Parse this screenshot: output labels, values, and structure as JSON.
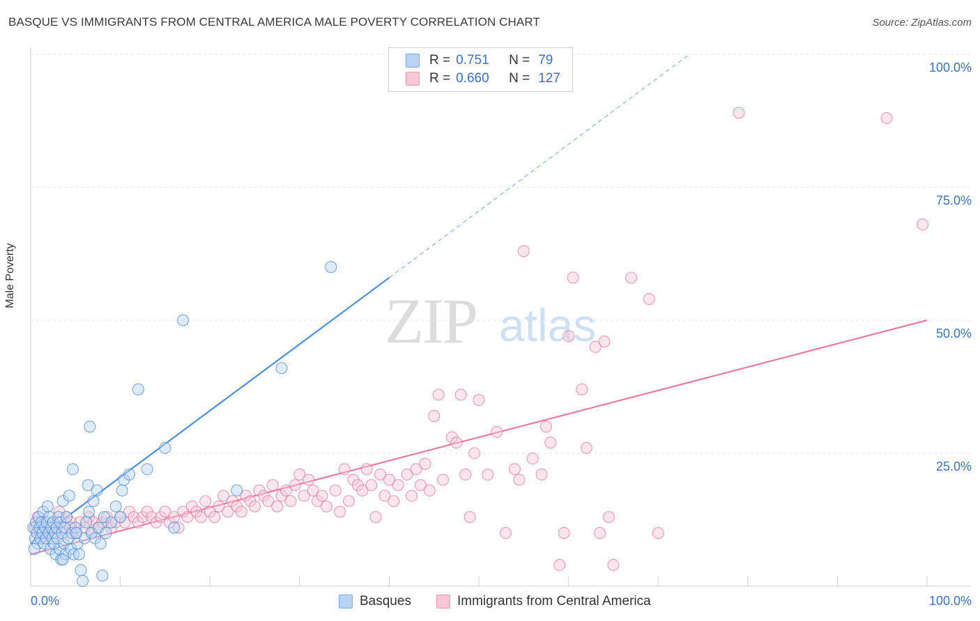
{
  "title": "BASQUE VS IMMIGRANTS FROM CENTRAL AMERICA MALE POVERTY CORRELATION CHART",
  "source": "Source: ZipAtlas.com",
  "watermark": {
    "zip": "ZIP",
    "atlas": "atlas"
  },
  "legend": {
    "r_label": "R =",
    "n_label": "N =",
    "rows": [
      {
        "r": "0.751",
        "n": "79",
        "color": "#a9c8f3"
      },
      {
        "r": "0.660",
        "n": "127",
        "color": "#f6b9cb"
      }
    ]
  },
  "bottom_legend": {
    "basques": "Basques",
    "immigrants": "Immigrants from Central America"
  },
  "y_ticks": [
    "100.0%",
    "75.0%",
    "50.0%",
    "25.0%"
  ],
  "x_ticks": {
    "left": "0.0%",
    "right": "100.0%"
  },
  "chart_data": {
    "type": "scatter",
    "title": "BASQUE VS IMMIGRANTS FROM CENTRAL AMERICA MALE POVERTY CORRELATION CHART",
    "xlabel": "",
    "ylabel": "Male Poverty",
    "xlim": [
      0,
      100
    ],
    "ylim": [
      0,
      100
    ],
    "grid": true,
    "legend_position": "top-center",
    "series": [
      {
        "name": "Basques",
        "color": "#4a8ee0",
        "fill": "#b9d3f5",
        "trend": {
          "x": [
            0,
            40
          ],
          "y": [
            8,
            58
          ],
          "dashed_to": [
            73.5,
            100
          ]
        },
        "points": [
          [
            0.3,
            11
          ],
          [
            0.5,
            9
          ],
          [
            0.6,
            12
          ],
          [
            0.7,
            10
          ],
          [
            0.8,
            8
          ],
          [
            0.9,
            13
          ],
          [
            1.0,
            11
          ],
          [
            1.1,
            9
          ],
          [
            1.2,
            12
          ],
          [
            1.3,
            10
          ],
          [
            1.4,
            14
          ],
          [
            1.5,
            8
          ],
          [
            1.6,
            11
          ],
          [
            1.7,
            9
          ],
          [
            1.8,
            12
          ],
          [
            2.0,
            10
          ],
          [
            2.1,
            13
          ],
          [
            2.2,
            7
          ],
          [
            2.3,
            11
          ],
          [
            2.4,
            9
          ],
          [
            2.5,
            12
          ],
          [
            2.6,
            8
          ],
          [
            2.7,
            10
          ],
          [
            2.8,
            6
          ],
          [
            2.9,
            11
          ],
          [
            3.0,
            9
          ],
          [
            3.1,
            13
          ],
          [
            3.2,
            7
          ],
          [
            3.3,
            12
          ],
          [
            3.4,
            5
          ],
          [
            3.5,
            10
          ],
          [
            3.6,
            16
          ],
          [
            3.7,
            8
          ],
          [
            3.8,
            11
          ],
          [
            3.9,
            6
          ],
          [
            4.0,
            13
          ],
          [
            4.2,
            9
          ],
          [
            4.3,
            17
          ],
          [
            4.5,
            7
          ],
          [
            4.6,
            10
          ],
          [
            4.7,
            22
          ],
          [
            4.8,
            6
          ],
          [
            5.0,
            11
          ],
          [
            5.2,
            8
          ],
          [
            5.4,
            6
          ],
          [
            5.6,
            3
          ],
          [
            5.8,
            1
          ],
          [
            6.0,
            9
          ],
          [
            6.2,
            12
          ],
          [
            6.4,
            19
          ],
          [
            6.6,
            30
          ],
          [
            6.8,
            10
          ],
          [
            7.0,
            16
          ],
          [
            7.2,
            9
          ],
          [
            7.4,
            18
          ],
          [
            7.6,
            11
          ],
          [
            7.8,
            8
          ],
          [
            8.0,
            2
          ],
          [
            8.2,
            13
          ],
          [
            8.4,
            10
          ],
          [
            9.0,
            12
          ],
          [
            9.5,
            15
          ],
          [
            10.0,
            13
          ],
          [
            10.2,
            18
          ],
          [
            10.4,
            20
          ],
          [
            11.0,
            21
          ],
          [
            12.0,
            37
          ],
          [
            13.0,
            22
          ],
          [
            15.0,
            26
          ],
          [
            16.0,
            11
          ],
          [
            17.0,
            50
          ],
          [
            23.0,
            18
          ],
          [
            28.0,
            41
          ],
          [
            33.5,
            60
          ],
          [
            0.4,
            7
          ],
          [
            1.9,
            15
          ],
          [
            3.6,
            5
          ],
          [
            5.1,
            10
          ],
          [
            6.5,
            14
          ]
        ]
      },
      {
        "name": "Immigrants from Central America",
        "color": "#e87aa0",
        "fill": "#f8c6d6",
        "trend": {
          "x": [
            0,
            100
          ],
          "y": [
            6,
            50
          ]
        },
        "points": [
          [
            0.5,
            11
          ],
          [
            1.0,
            10
          ],
          [
            1.5,
            12
          ],
          [
            2.0,
            11
          ],
          [
            2.5,
            10
          ],
          [
            3.0,
            12
          ],
          [
            3.5,
            11
          ],
          [
            4.0,
            13
          ],
          [
            4.5,
            12
          ],
          [
            5.0,
            10
          ],
          [
            5.5,
            12
          ],
          [
            6.0,
            11
          ],
          [
            6.5,
            13
          ],
          [
            7.0,
            12
          ],
          [
            7.5,
            11
          ],
          [
            8.0,
            12
          ],
          [
            8.5,
            13
          ],
          [
            9.0,
            11
          ],
          [
            9.5,
            12
          ],
          [
            10.0,
            13
          ],
          [
            10.5,
            12
          ],
          [
            11.0,
            14
          ],
          [
            11.5,
            13
          ],
          [
            12.0,
            12
          ],
          [
            12.5,
            13
          ],
          [
            13.0,
            14
          ],
          [
            13.5,
            13
          ],
          [
            14.0,
            12
          ],
          [
            14.5,
            13
          ],
          [
            15.0,
            14
          ],
          [
            15.5,
            12
          ],
          [
            16.0,
            13
          ],
          [
            16.5,
            11
          ],
          [
            17.0,
            14
          ],
          [
            17.5,
            13
          ],
          [
            18.0,
            15
          ],
          [
            18.5,
            14
          ],
          [
            19.0,
            13
          ],
          [
            19.5,
            16
          ],
          [
            20.0,
            14
          ],
          [
            20.5,
            13
          ],
          [
            21.0,
            15
          ],
          [
            21.5,
            17
          ],
          [
            22.0,
            14
          ],
          [
            22.5,
            16
          ],
          [
            23.0,
            15
          ],
          [
            23.5,
            14
          ],
          [
            24.0,
            17
          ],
          [
            24.5,
            16
          ],
          [
            25.0,
            15
          ],
          [
            25.5,
            18
          ],
          [
            26.0,
            17
          ],
          [
            26.5,
            16
          ],
          [
            27.0,
            19
          ],
          [
            27.5,
            15
          ],
          [
            28.0,
            17
          ],
          [
            28.5,
            18
          ],
          [
            29.0,
            16
          ],
          [
            29.5,
            19
          ],
          [
            30.0,
            21
          ],
          [
            30.5,
            17
          ],
          [
            31.0,
            20
          ],
          [
            31.5,
            18
          ],
          [
            32.0,
            16
          ],
          [
            32.5,
            17
          ],
          [
            33.0,
            15
          ],
          [
            34.0,
            18
          ],
          [
            34.5,
            14
          ],
          [
            35.0,
            22
          ],
          [
            35.5,
            16
          ],
          [
            36.0,
            20
          ],
          [
            36.5,
            19
          ],
          [
            37.0,
            18
          ],
          [
            37.5,
            22
          ],
          [
            38.0,
            19
          ],
          [
            38.5,
            13
          ],
          [
            39.0,
            21
          ],
          [
            39.5,
            17
          ],
          [
            40.0,
            20
          ],
          [
            40.5,
            16
          ],
          [
            41.0,
            19
          ],
          [
            42.0,
            21
          ],
          [
            42.5,
            17
          ],
          [
            43.0,
            22
          ],
          [
            43.5,
            19
          ],
          [
            44.0,
            23
          ],
          [
            44.5,
            18
          ],
          [
            45.0,
            32
          ],
          [
            45.5,
            36
          ],
          [
            46.0,
            20
          ],
          [
            47.0,
            28
          ],
          [
            47.5,
            27
          ],
          [
            48.0,
            36
          ],
          [
            48.5,
            21
          ],
          [
            49.0,
            13
          ],
          [
            49.5,
            25
          ],
          [
            50.0,
            35
          ],
          [
            51.0,
            21
          ],
          [
            52.0,
            29
          ],
          [
            53.0,
            10
          ],
          [
            54.0,
            22
          ],
          [
            54.5,
            20
          ],
          [
            55.0,
            63
          ],
          [
            56.0,
            24
          ],
          [
            57.0,
            21
          ],
          [
            57.5,
            30
          ],
          [
            58.0,
            27
          ],
          [
            59.0,
            4
          ],
          [
            59.5,
            10
          ],
          [
            60.0,
            47
          ],
          [
            60.5,
            58
          ],
          [
            61.5,
            37
          ],
          [
            62.0,
            26
          ],
          [
            63.0,
            45
          ],
          [
            63.5,
            10
          ],
          [
            64.0,
            46
          ],
          [
            64.5,
            13
          ],
          [
            65.0,
            4
          ],
          [
            67.0,
            58
          ],
          [
            69.0,
            54
          ],
          [
            70.0,
            10
          ],
          [
            79.0,
            89
          ],
          [
            95.5,
            88
          ],
          [
            99.5,
            68
          ],
          [
            0.8,
            13
          ],
          [
            1.8,
            9
          ],
          [
            3.2,
            14
          ],
          [
            4.4,
            11
          ],
          [
            6.8,
            10
          ]
        ]
      }
    ]
  }
}
